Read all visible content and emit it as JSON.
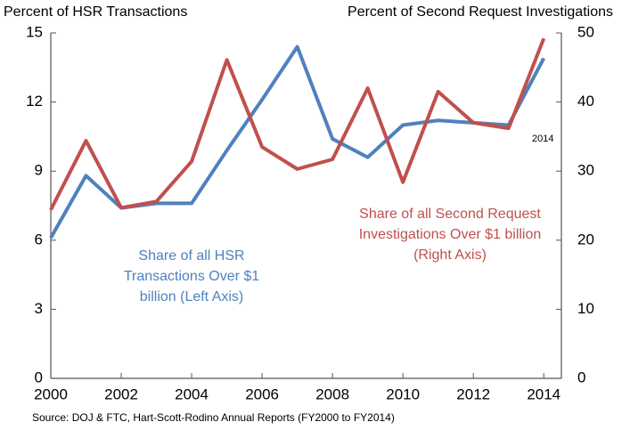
{
  "chart_data": {
    "type": "line",
    "y_label": "Percent of HSR Transactions",
    "y2_label": "Percent of Second Request Investigations",
    "source": "Source: DOJ & FTC, Hart-Scott-Rodino Annual Reports (FY2000 to FY2014)",
    "annotation": "2014",
    "x": [
      2000,
      2001,
      2002,
      2003,
      2004,
      2005,
      2006,
      2007,
      2008,
      2009,
      2010,
      2011,
      2012,
      2013,
      2014
    ],
    "series": [
      {
        "name": "Share of all HSR Transactions Over $1 billion (Left Axis)",
        "color": "#4f81bd",
        "axis": "y",
        "values": [
          6.1,
          8.8,
          7.4,
          7.6,
          7.6,
          9.9,
          12.1,
          14.4,
          10.4,
          9.6,
          11.0,
          11.2,
          11.1,
          11.0,
          13.9
        ]
      },
      {
        "name": "Share of all Second Request Investigations Over $1 billion (Right Axis)",
        "color": "#c0504d",
        "axis": "y2",
        "values": [
          24.4,
          34.4,
          24.7,
          25.6,
          31.4,
          46.1,
          33.5,
          30.3,
          31.7,
          42.0,
          28.4,
          41.5,
          37.0,
          36.2,
          49.2
        ]
      }
    ],
    "xlim": [
      2000,
      2014.5
    ],
    "xticks": [
      2000,
      2002,
      2004,
      2006,
      2008,
      2010,
      2012,
      2014
    ],
    "ylim": [
      0,
      15
    ],
    "yticks": [
      0,
      3,
      6,
      9,
      12,
      15
    ],
    "y2lim": [
      0,
      50
    ],
    "y2ticks": [
      0,
      10,
      20,
      30,
      40,
      50
    ]
  }
}
